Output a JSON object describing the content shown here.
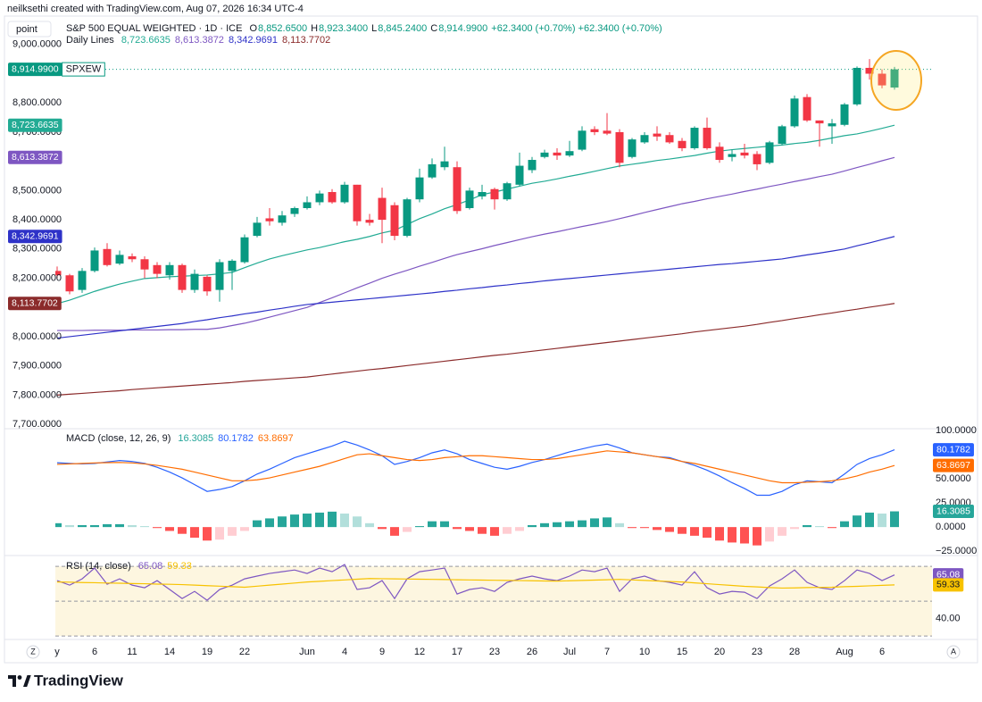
{
  "header": {
    "credit": "neilksethi created with TradingView.com, Aug 07, 2026 16:34 UTC-4",
    "mode_button": "point",
    "symbol": "S&P 500 EQUAL WEIGHTED · 1D · ICE",
    "ohlc": [
      {
        "key": "O",
        "value": "8,852.6500"
      },
      {
        "key": "H",
        "value": "8,923.3400"
      },
      {
        "key": "L",
        "value": "8,845.2400"
      },
      {
        "key": "C",
        "value": "8,914.9900"
      }
    ],
    "change": "+62.3400 (+0.70%) +62.3400 (+0.70%)",
    "lines_title": "Daily Lines"
  },
  "chart_data": [
    {
      "type": "candlestick",
      "symbol_tag": "SPXEW",
      "categories": [
        "y",
        null,
        null,
        "6",
        null,
        null,
        "11",
        null,
        null,
        "14",
        null,
        null,
        "19",
        null,
        null,
        "22",
        null,
        null,
        null,
        null,
        "Jun",
        null,
        null,
        "4",
        null,
        null,
        "9",
        null,
        null,
        "12",
        null,
        null,
        "17",
        null,
        null,
        "23",
        null,
        null,
        "26",
        null,
        null,
        "Jul",
        null,
        null,
        "7",
        null,
        null,
        "10",
        null,
        null,
        "15",
        null,
        null,
        "20",
        null,
        null,
        "23",
        null,
        null,
        "28",
        null,
        null,
        null,
        "Aug",
        null,
        null,
        "6",
        null
      ],
      "open": [
        8225,
        8210,
        8160,
        8225,
        8300,
        8250,
        8275,
        8265,
        8245,
        8210,
        8245,
        8160,
        8205,
        8160,
        8225,
        8255,
        8345,
        8405,
        8390,
        8420,
        8440,
        8460,
        8495,
        8460,
        8520,
        8400,
        8475,
        8450,
        8345,
        8470,
        8545,
        8580,
        8580,
        8440,
        8480,
        8505,
        8470,
        8520,
        8570,
        8615,
        8630,
        8620,
        8640,
        8710,
        8705,
        8700,
        8615,
        8665,
        8695,
        8690,
        8670,
        8645,
        8715,
        8650,
        8615,
        8630,
        8625,
        8595,
        8660,
        8720,
        8820,
        8740,
        8720,
        8725,
        8795,
        8920,
        8900,
        8852.65
      ],
      "high": [
        8240,
        8215,
        8235,
        8305,
        8320,
        8295,
        8285,
        8275,
        8255,
        8255,
        8250,
        8230,
        8210,
        8265,
        8265,
        8350,
        8410,
        8440,
        8430,
        8445,
        8480,
        8500,
        8505,
        8530,
        8520,
        8420,
        8510,
        8460,
        8475,
        8575,
        8610,
        8650,
        8600,
        8510,
        8520,
        8510,
        8530,
        8630,
        8615,
        8640,
        8645,
        8670,
        8720,
        8720,
        8765,
        8710,
        8680,
        8700,
        8720,
        8700,
        8680,
        8720,
        8750,
        8665,
        8640,
        8660,
        8635,
        8670,
        8725,
        8825,
        8830,
        8740,
        8745,
        8800,
        8925,
        8950,
        8915,
        8923.34
      ],
      "low": [
        8200,
        8145,
        8150,
        8220,
        8240,
        8245,
        8255,
        8200,
        8200,
        8195,
        8150,
        8150,
        8140,
        8120,
        8160,
        8250,
        8340,
        8380,
        8380,
        8410,
        8435,
        8450,
        8455,
        8455,
        8380,
        8380,
        8320,
        8330,
        8340,
        8460,
        8540,
        8570,
        8420,
        8435,
        8470,
        8435,
        8465,
        8515,
        8560,
        8610,
        8605,
        8615,
        8635,
        8690,
        8690,
        8580,
        8610,
        8660,
        8670,
        8660,
        8635,
        8640,
        8640,
        8595,
        8600,
        8610,
        8570,
        8590,
        8655,
        8715,
        8735,
        8650,
        8660,
        8720,
        8790,
        8880,
        8850,
        8845.24
      ],
      "close": [
        8210,
        8155,
        8225,
        8295,
        8245,
        8280,
        8265,
        8230,
        8215,
        8245,
        8160,
        8215,
        8155,
        8255,
        8260,
        8340,
        8390,
        8395,
        8415,
        8440,
        8460,
        8490,
        8460,
        8520,
        8395,
        8390,
        8400,
        8345,
        8470,
        8545,
        8590,
        8600,
        8430,
        8500,
        8495,
        8470,
        8525,
        8585,
        8605,
        8630,
        8620,
        8635,
        8705,
        8700,
        8695,
        8595,
        8675,
        8690,
        8685,
        8665,
        8645,
        8715,
        8645,
        8605,
        8625,
        8620,
        8590,
        8665,
        8720,
        8815,
        8740,
        8730,
        8730,
        8795,
        8920,
        8900,
        8860,
        8914.99
      ],
      "last_label": "8,914.9900",
      "up_color": "#089981",
      "down_color": "#f23645",
      "series": [
        {
          "color": "#22ab94",
          "last_label": "8,723.6635",
          "values": [
            8113,
            8125,
            8140,
            8155,
            8168,
            8180,
            8190,
            8199,
            8202,
            8205,
            8207,
            8209,
            8211,
            8215,
            8220,
            8236,
            8252,
            8266,
            8277,
            8287,
            8297,
            8305,
            8315,
            8325,
            8333,
            8343,
            8355,
            8364,
            8384,
            8404,
            8420,
            8438,
            8452,
            8468,
            8486,
            8495,
            8505,
            8515,
            8525,
            8532,
            8540,
            8549,
            8557,
            8566,
            8575,
            8584,
            8590,
            8596,
            8603,
            8608,
            8614,
            8620,
            8628,
            8635,
            8640,
            8644,
            8648,
            8652,
            8656,
            8661,
            8665,
            8672,
            8680,
            8688,
            8694,
            8703,
            8713,
            8723.6635
          ]
        },
        {
          "color": "#7e57c2",
          "last_label": "8,613.3872",
          "values": [
            8021,
            8021,
            8021,
            8022,
            8022,
            8022,
            8023,
            8023,
            8023,
            8024,
            8024,
            8025,
            8025,
            8030,
            8038,
            8046,
            8056,
            8067,
            8078,
            8089,
            8100,
            8117,
            8133,
            8150,
            8167,
            8183,
            8200,
            8214,
            8227,
            8241,
            8254,
            8268,
            8281,
            8291,
            8301,
            8312,
            8322,
            8332,
            8342,
            8351,
            8359,
            8368,
            8377,
            8385,
            8394,
            8404,
            8414,
            8425,
            8435,
            8445,
            8455,
            8463,
            8472,
            8480,
            8488,
            8497,
            8505,
            8514,
            8522,
            8531,
            8539,
            8548,
            8556,
            8567,
            8579,
            8590,
            8602,
            8613.3872
          ]
        },
        {
          "color": "#2e32c8",
          "last_label": "8,342.9691",
          "values": [
            7995,
            8000,
            8005,
            8010,
            8015,
            8020,
            8025,
            8030,
            8035,
            8040,
            8045,
            8052,
            8058,
            8065,
            8071,
            8078,
            8084,
            8091,
            8097,
            8104,
            8110,
            8114,
            8118,
            8122,
            8126,
            8130,
            8134,
            8138,
            8142,
            8146,
            8150,
            8155,
            8159,
            8164,
            8168,
            8173,
            8177,
            8182,
            8186,
            8191,
            8195,
            8199,
            8203,
            8207,
            8211,
            8215,
            8219,
            8223,
            8227,
            8231,
            8235,
            8239,
            8243,
            8247,
            8250,
            8254,
            8258,
            8262,
            8266,
            8273,
            8280,
            8286,
            8293,
            8300,
            8311,
            8321,
            8332,
            8342.9691
          ]
        },
        {
          "color": "#8b2b2b",
          "last_label": "8,113.7702",
          "values": [
            7800,
            7803,
            7806,
            7809,
            7812,
            7815,
            7819,
            7822,
            7825,
            7828,
            7831,
            7834,
            7837,
            7840,
            7843,
            7847,
            7850,
            7853,
            7856,
            7859,
            7862,
            7867,
            7872,
            7877,
            7882,
            7887,
            7891,
            7896,
            7901,
            7906,
            7911,
            7916,
            7921,
            7926,
            7931,
            7936,
            7940,
            7945,
            7950,
            7955,
            7960,
            7965,
            7970,
            7975,
            7980,
            7985,
            7990,
            7995,
            8000,
            8005,
            8010,
            8016,
            8021,
            8026,
            8031,
            8036,
            8042,
            8049,
            8055,
            8062,
            8068,
            8075,
            8081,
            8088,
            8094,
            8101,
            8107,
            8113.7702
          ]
        }
      ],
      "ylim": [
        7685,
        9085
      ],
      "yticks": [
        {
          "value": 9000,
          "label": "9,000.0000"
        },
        {
          "value": 8800,
          "label": "8,800.0000"
        },
        {
          "value": 8700,
          "label": "8,700.0000"
        },
        {
          "value": 8500,
          "label": "8,500.0000"
        },
        {
          "value": 8400,
          "label": "8,400.0000"
        },
        {
          "value": 8300,
          "label": "8,300.0000"
        },
        {
          "value": 8200,
          "label": "8,200.0000"
        },
        {
          "value": 8000,
          "label": "8,000.0000"
        },
        {
          "value": 7900,
          "label": "7,900.0000"
        },
        {
          "value": 7800,
          "label": "7,800.0000"
        },
        {
          "value": 7700,
          "label": "7,700.0000"
        }
      ],
      "grid": false
    },
    {
      "type": "macd",
      "title": "MACD (close, 12, 26, 9)",
      "histogram": {
        "last_label": "16.3085",
        "palette": [
          "#26a69a",
          "#b2dfdb",
          "#ff5252",
          "#ffcdd2"
        ],
        "values": [
          4,
          2,
          2,
          2,
          3,
          3,
          2,
          1,
          -1,
          -4,
          -7,
          -11,
          -14,
          -13,
          -9,
          -4,
          7,
          9,
          11,
          13,
          14,
          15,
          16,
          14,
          11,
          4,
          -2,
          -9,
          -5,
          1,
          6,
          6,
          -2,
          -4,
          -7,
          -9,
          -7,
          -4,
          2,
          4,
          5,
          6,
          7,
          9,
          10,
          4,
          -1,
          -1,
          -3,
          -5,
          -7,
          -9,
          -11,
          -14,
          -16,
          -17,
          -19,
          -15,
          -9,
          -2,
          2,
          1,
          -1,
          6,
          12,
          15,
          14,
          16.3085
        ]
      },
      "series": [
        {
          "color": "#2962ff",
          "last_label": "80.1782",
          "values": [
            66.7,
            66,
            65.5,
            66,
            67.5,
            69,
            68,
            66,
            62,
            57,
            51,
            44,
            37,
            39,
            42,
            48,
            55,
            60,
            66,
            72,
            76,
            80,
            84,
            89,
            85,
            80,
            74,
            65,
            68,
            72,
            77,
            80,
            76,
            70,
            66,
            62,
            60,
            63,
            67,
            70,
            74,
            78,
            81,
            84,
            86,
            82,
            77,
            75,
            73,
            72,
            68,
            64,
            59,
            53,
            46,
            40,
            33,
            33,
            37,
            44,
            48,
            47,
            46,
            55,
            65,
            71,
            75,
            80.1782
          ]
        },
        {
          "color": "#ff6d00",
          "last_label": "63.8697",
          "values": [
            65,
            65.5,
            66,
            66.5,
            66.8,
            67,
            66.5,
            65.5,
            64,
            62,
            60,
            57,
            54,
            51,
            48,
            48,
            49,
            51,
            54,
            57,
            60,
            63,
            67,
            71,
            75,
            76,
            74,
            72,
            70,
            69,
            70,
            72,
            73,
            74,
            74,
            73,
            72,
            71,
            70,
            70,
            71,
            73,
            75,
            77,
            79,
            78,
            77,
            75,
            73,
            71,
            68,
            66,
            63,
            60,
            57,
            54,
            51,
            48,
            46,
            46,
            46.5,
            47,
            48,
            50,
            53,
            57,
            60,
            63.8697
          ]
        }
      ],
      "ylim": [
        -29.5,
        102
      ],
      "yticks": [
        {
          "value": 100,
          "label": "100.0000"
        },
        {
          "value": 50,
          "label": "50.0000"
        },
        {
          "value": 25,
          "label": "25.0000"
        },
        {
          "value": 0,
          "label": "0.0000"
        },
        {
          "value": -25,
          "label": "−25.0000"
        }
      ],
      "grid": false
    },
    {
      "type": "rsi",
      "title": "RSI (14, close)",
      "series": [
        {
          "color": "#7e57c2",
          "last_label": "65.08",
          "values": [
            61.8,
            59.2,
            62.8,
            69,
            59.7,
            62.8,
            59.2,
            57.7,
            61.8,
            56.7,
            51.5,
            55.6,
            50.5,
            56.7,
            59.2,
            62.8,
            64.4,
            65.9,
            66.9,
            67.9,
            65.9,
            69,
            66.9,
            71,
            56.7,
            57.7,
            61.8,
            51.5,
            62.8,
            66.9,
            67.9,
            69,
            54.1,
            56.7,
            57.7,
            55.6,
            60.8,
            62.8,
            64.4,
            62.8,
            61.8,
            64.4,
            67.9,
            66.9,
            69,
            55.6,
            62.8,
            64.4,
            61.8,
            60.8,
            59.2,
            66.9,
            57.7,
            54.1,
            55.6,
            55.1,
            51.5,
            58.7,
            62.8,
            67.9,
            60.8,
            57.7,
            56.7,
            61.8,
            67.9,
            65.9,
            61.8,
            65.08
          ]
        },
        {
          "color": "#f7c200",
          "last_label": "59.33",
          "values": [
            61,
            60.9,
            60.7,
            60.6,
            60.4,
            60.3,
            60.1,
            60,
            59.8,
            59.7,
            59.5,
            59.2,
            58.9,
            58.6,
            58.3,
            58,
            58.6,
            59.2,
            59.8,
            60.4,
            61,
            61.4,
            61.8,
            62.2,
            62.6,
            63,
            62.9,
            62.8,
            62.7,
            62.6,
            62.5,
            62.4,
            62.3,
            62.2,
            62.1,
            62,
            61.9,
            61.8,
            61.7,
            61.6,
            61.5,
            61.7,
            61.9,
            62.1,
            62.3,
            62.5,
            62.2,
            61.9,
            61.6,
            61.3,
            61,
            60.5,
            60,
            59.5,
            59,
            58.5,
            58.2,
            57.8,
            57.5,
            57.6,
            57.8,
            57.9,
            58,
            58.3,
            58.5,
            58.8,
            59.1,
            59.33
          ]
        }
      ],
      "bands": [
        70,
        50,
        30
      ],
      "band_color": "#9598a1",
      "band_fill": "#fdf6e0",
      "ylim": [
        28.5,
        76.2
      ],
      "yticks": [
        {
          "value": 40,
          "label": "40.00"
        }
      ],
      "grid": false
    }
  ],
  "footer": {
    "logo": "TradingView",
    "left_button": "Z",
    "right_button": "A"
  }
}
